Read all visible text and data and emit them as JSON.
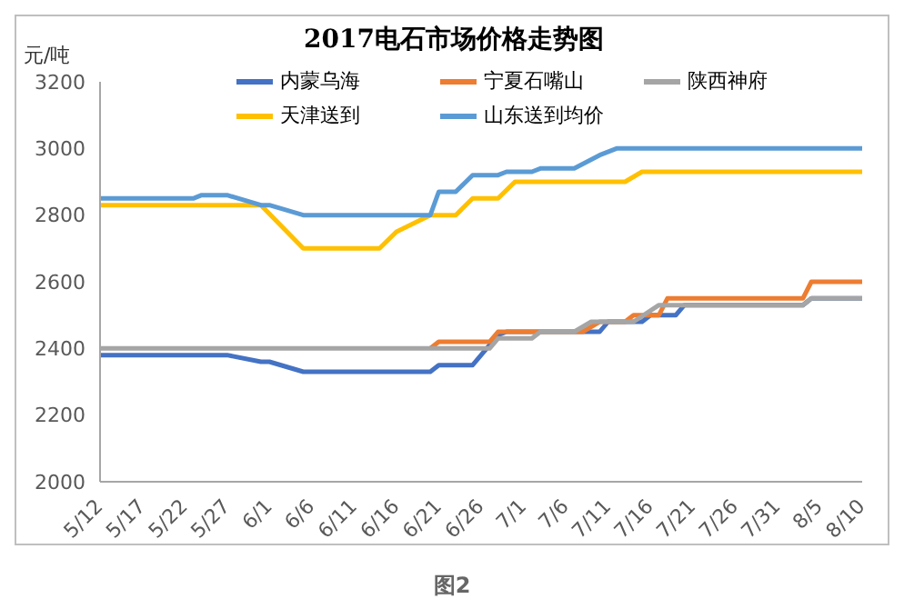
{
  "chart_data": {
    "type": "line",
    "title": "2017电石市场价格走势图",
    "ylabel": "元/吨",
    "annotations": [
      "图2"
    ],
    "marker": "none",
    "line_style": "solid",
    "legend": "top",
    "xlim": [
      "--05-12",
      "--08-10"
    ],
    "xticks": [
      {
        "value": "--05-12",
        "label": "5/12"
      },
      {
        "value": "--05-17",
        "label": "5/17"
      },
      {
        "value": "--05-22",
        "label": "5/22"
      },
      {
        "value": "--05-27",
        "label": "5/27"
      },
      {
        "value": "--06-01",
        "label": "6/1"
      },
      {
        "value": "--06-06",
        "label": "6/6"
      },
      {
        "value": "--06-11",
        "label": "6/11"
      },
      {
        "value": "--06-16",
        "label": "6/16"
      },
      {
        "value": "--06-21",
        "label": "6/21"
      },
      {
        "value": "--06-26",
        "label": "6/26"
      },
      {
        "value": "--07-01",
        "label": "7/1"
      },
      {
        "value": "--07-06",
        "label": "7/6"
      },
      {
        "value": "--07-11",
        "label": "7/11"
      },
      {
        "value": "--07-16",
        "label": "7/16"
      },
      {
        "value": "--07-21",
        "label": "7/21"
      },
      {
        "value": "--07-26",
        "label": "7/26"
      },
      {
        "value": "--07-31",
        "label": "7/31"
      },
      {
        "value": "--08-05",
        "label": "8/5"
      },
      {
        "value": "--08-10",
        "label": "8/10"
      }
    ],
    "ylim": [
      2000,
      3200
    ],
    "yticks": [
      2000,
      2200,
      2400,
      2600,
      2800,
      3000,
      3200
    ],
    "series": [
      {
        "name": "内蒙乌海",
        "color": "#4472c4",
        "x": [
          "--05-12",
          "--05-27",
          "--05-31",
          "--06-01",
          "--06-05",
          "--06-20",
          "--06-21",
          "--06-25",
          "--06-28",
          "--06-29",
          "--07-10",
          "--07-11",
          "--07-15",
          "--07-16",
          "--07-19",
          "--07-20",
          "--08-03",
          "--08-04",
          "--08-10"
        ],
        "values": [
          2380,
          2380,
          2360,
          2360,
          2330,
          2330,
          2350,
          2350,
          2440,
          2450,
          2450,
          2480,
          2480,
          2500,
          2500,
          2530,
          2530,
          2550,
          2550
        ]
      },
      {
        "name": "宁夏石嘴山",
        "color": "#ed7d31",
        "x": [
          "--06-20",
          "--06-21",
          "--06-27",
          "--06-28",
          "--07-08",
          "--07-10",
          "--07-13",
          "--07-14",
          "--07-17",
          "--07-18",
          "--08-03",
          "--08-04",
          "--08-10"
        ],
        "values": [
          2400,
          2420,
          2420,
          2450,
          2450,
          2480,
          2480,
          2500,
          2500,
          2550,
          2550,
          2600,
          2600
        ]
      },
      {
        "name": "陕西神府",
        "color": "#a5a5a5",
        "x": [
          "--05-12",
          "--06-27",
          "--06-28",
          "--07-02",
          "--07-03",
          "--07-07",
          "--07-09",
          "--07-14",
          "--07-17",
          "--08-03",
          "--08-04",
          "--08-10"
        ],
        "values": [
          2400,
          2400,
          2430,
          2430,
          2450,
          2450,
          2480,
          2480,
          2530,
          2530,
          2550,
          2550
        ]
      },
      {
        "name": "天津送到",
        "color": "#ffc000",
        "x": [
          "--05-12",
          "--05-31",
          "--06-05",
          "--06-14",
          "--06-16",
          "--06-20",
          "--06-23",
          "--06-25",
          "--06-28",
          "--06-30",
          "--07-13",
          "--07-15",
          "--08-10"
        ],
        "values": [
          2830,
          2830,
          2700,
          2700,
          2750,
          2800,
          2800,
          2850,
          2850,
          2900,
          2900,
          2930,
          2930
        ]
      },
      {
        "name": "山东送到均价",
        "color": "#5b9bd5",
        "x": [
          "--05-12",
          "--05-23",
          "--05-24",
          "--05-27",
          "--05-31",
          "--06-01",
          "--06-05",
          "--06-20",
          "--06-21",
          "--06-23",
          "--06-25",
          "--06-28",
          "--06-29",
          "--07-02",
          "--07-03",
          "--07-07",
          "--07-10",
          "--07-12",
          "--08-10"
        ],
        "values": [
          2850,
          2850,
          2860,
          2860,
          2830,
          2830,
          2800,
          2800,
          2870,
          2870,
          2920,
          2920,
          2930,
          2930,
          2940,
          2940,
          2980,
          3000,
          3000
        ]
      }
    ]
  }
}
